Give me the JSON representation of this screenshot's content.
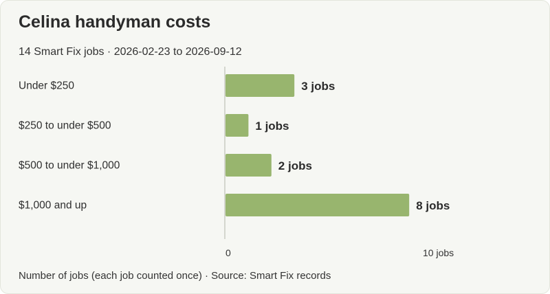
{
  "chart_data": {
    "type": "bar",
    "orientation": "horizontal",
    "title": "Celina handyman costs",
    "subtitle": "14 Smart Fix jobs · 2026-02-23 to 2026-09-12",
    "footer": "Number of jobs (each job counted once) · Source: Smart Fix records",
    "categories": [
      "Under $250",
      "$250 to under $500",
      "$500 to under $1,000",
      "$1,000 and up"
    ],
    "values": [
      3,
      1,
      2,
      8
    ],
    "value_labels": [
      "3 jobs",
      "1 jobs",
      "2 jobs",
      "8 jobs"
    ],
    "xlim": [
      0,
      10
    ],
    "ticks": [
      {
        "value": 0,
        "label": "0"
      },
      {
        "value": 10,
        "label": "10 jobs"
      }
    ],
    "bar_color": "#98b56e",
    "axis_color": "#c9ccc2",
    "grid": false
  }
}
